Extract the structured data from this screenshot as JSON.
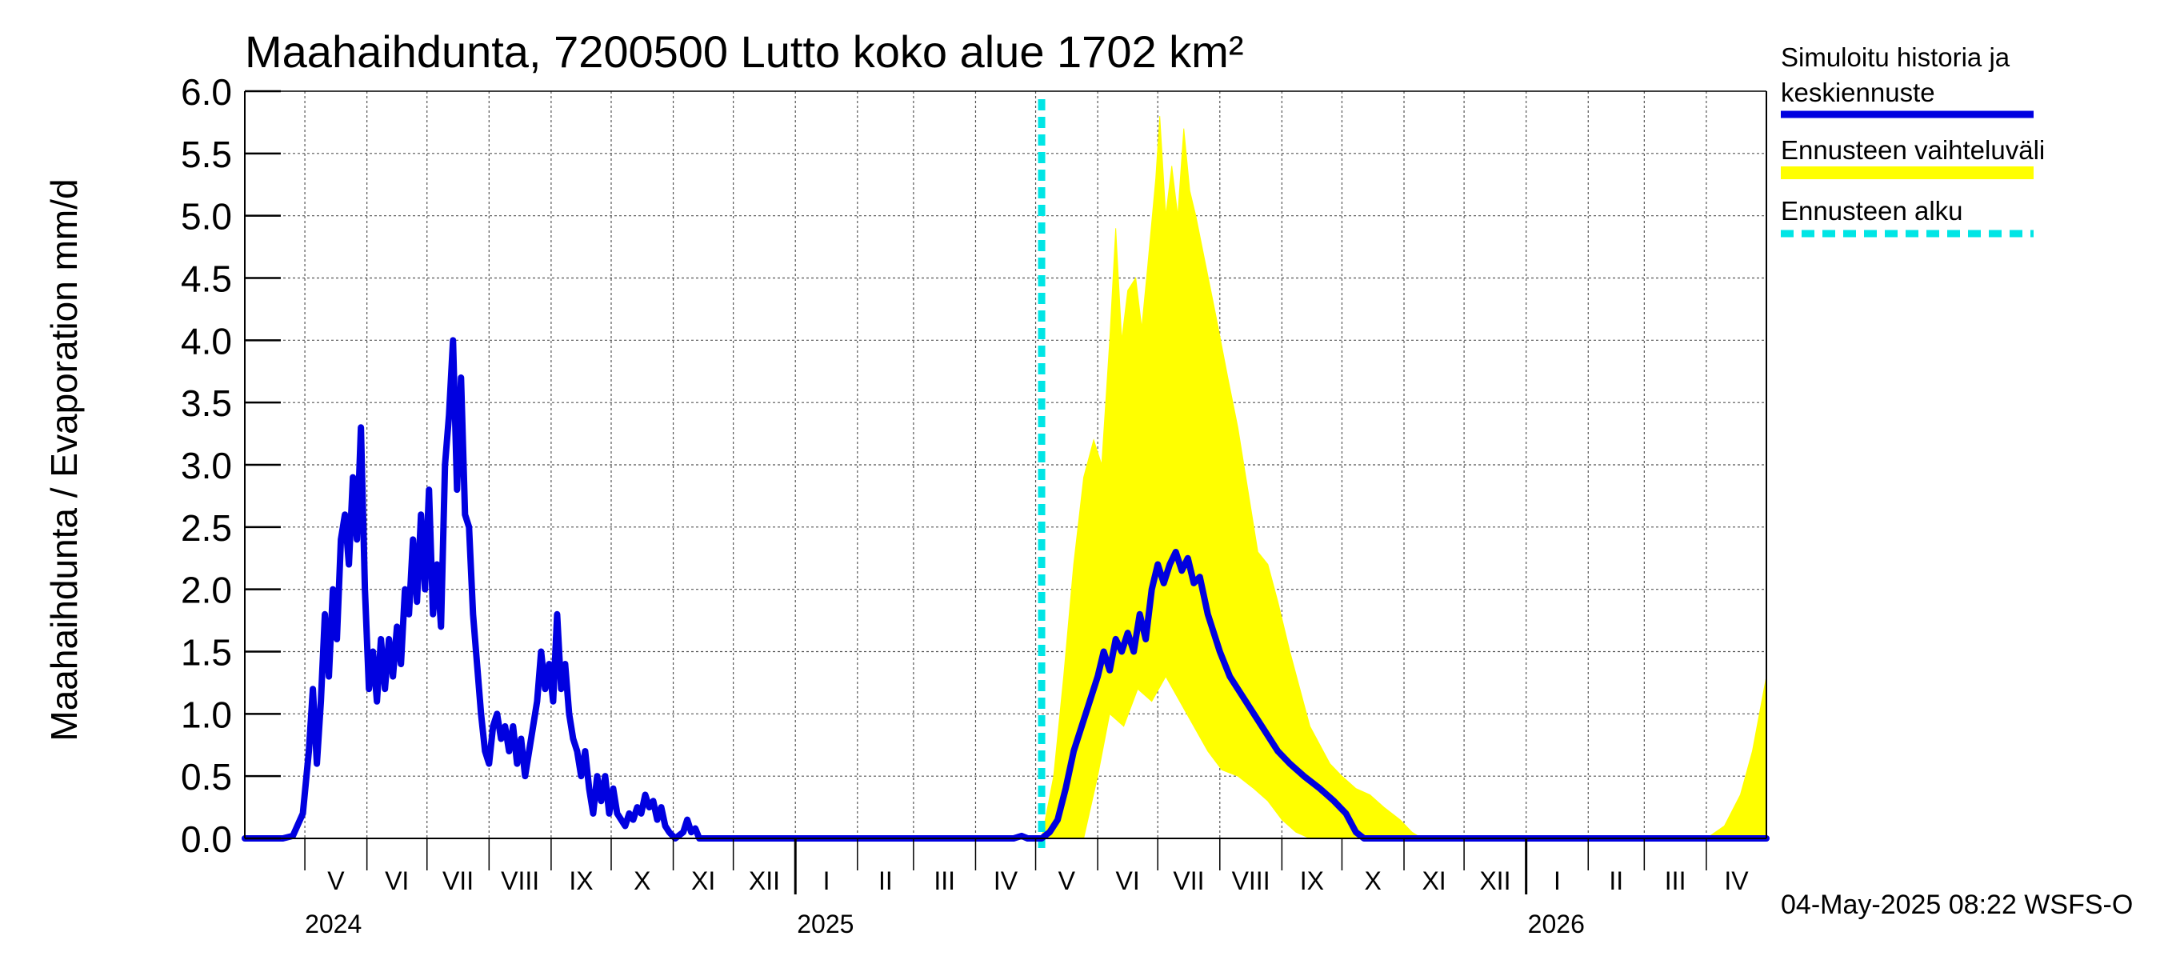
{
  "chart_data": {
    "type": "area",
    "title": "Maahaihdunta, 7200500 Lutto koko alue 1702 km²",
    "ylabel": "Maahaihdunta / Evaporation   mm/d",
    "ylim": [
      0,
      6
    ],
    "yticks": [
      "0.0",
      "0.5",
      "1.0",
      "1.5",
      "2.0",
      "2.5",
      "3.0",
      "3.5",
      "4.0",
      "4.5",
      "5.0",
      "5.5",
      "6.0"
    ],
    "x_range": [
      "2024-04-01",
      "2026-05-01"
    ],
    "x_unit": "date",
    "month_labels": [
      "V",
      "VI",
      "VII",
      "VIII",
      "IX",
      "X",
      "XI",
      "XII",
      "I",
      "II",
      "III",
      "IV",
      "V",
      "VI",
      "VII",
      "VIII",
      "IX",
      "X",
      "XI",
      "XII",
      "I",
      "II",
      "III",
      "IV"
    ],
    "year_labels": [
      "2024",
      "2025",
      "2026"
    ],
    "grid": true,
    "legend_position": "right",
    "forecast_start": "2025-05-04",
    "colors": {
      "history": "#0000e0",
      "range": "#ffff00",
      "forecast_line": "#00e5e5",
      "grid": "#555555"
    },
    "legend": [
      {
        "label_lines": [
          "Simuloitu historia ja",
          "keskiennuste"
        ],
        "style": "history"
      },
      {
        "label_lines": [
          "Ennusteen vaihteluväli"
        ],
        "style": "range"
      },
      {
        "label_lines": [
          "Ennusteen alku"
        ],
        "style": "forecast_line"
      }
    ],
    "series": [
      {
        "name": "Simuloitu historia ja keskiennuste",
        "points": [
          [
            "2024-04-01",
            0.0
          ],
          [
            "2024-04-20",
            0.0
          ],
          [
            "2024-04-25",
            0.02
          ],
          [
            "2024-04-30",
            0.2
          ],
          [
            "2024-05-03",
            0.7
          ],
          [
            "2024-05-05",
            1.2
          ],
          [
            "2024-05-07",
            0.6
          ],
          [
            "2024-05-09",
            1.1
          ],
          [
            "2024-05-11",
            1.8
          ],
          [
            "2024-05-13",
            1.3
          ],
          [
            "2024-05-15",
            2.0
          ],
          [
            "2024-05-17",
            1.6
          ],
          [
            "2024-05-19",
            2.4
          ],
          [
            "2024-05-21",
            2.6
          ],
          [
            "2024-05-23",
            2.2
          ],
          [
            "2024-05-25",
            2.9
          ],
          [
            "2024-05-27",
            2.4
          ],
          [
            "2024-05-29",
            3.3
          ],
          [
            "2024-05-31",
            2.0
          ],
          [
            "2024-06-02",
            1.2
          ],
          [
            "2024-06-04",
            1.5
          ],
          [
            "2024-06-06",
            1.1
          ],
          [
            "2024-06-08",
            1.6
          ],
          [
            "2024-06-10",
            1.2
          ],
          [
            "2024-06-12",
            1.6
          ],
          [
            "2024-06-14",
            1.3
          ],
          [
            "2024-06-16",
            1.7
          ],
          [
            "2024-06-18",
            1.4
          ],
          [
            "2024-06-20",
            2.0
          ],
          [
            "2024-06-22",
            1.8
          ],
          [
            "2024-06-24",
            2.4
          ],
          [
            "2024-06-26",
            1.9
          ],
          [
            "2024-06-28",
            2.6
          ],
          [
            "2024-06-30",
            2.0
          ],
          [
            "2024-07-02",
            2.8
          ],
          [
            "2024-07-04",
            1.8
          ],
          [
            "2024-07-06",
            2.2
          ],
          [
            "2024-07-08",
            1.7
          ],
          [
            "2024-07-10",
            3.0
          ],
          [
            "2024-07-12",
            3.4
          ],
          [
            "2024-07-14",
            4.0
          ],
          [
            "2024-07-16",
            2.8
          ],
          [
            "2024-07-18",
            3.7
          ],
          [
            "2024-07-20",
            2.6
          ],
          [
            "2024-07-22",
            2.5
          ],
          [
            "2024-07-24",
            1.8
          ],
          [
            "2024-07-26",
            1.4
          ],
          [
            "2024-07-28",
            1.0
          ],
          [
            "2024-07-30",
            0.7
          ],
          [
            "2024-08-01",
            0.6
          ],
          [
            "2024-08-03",
            0.9
          ],
          [
            "2024-08-05",
            1.0
          ],
          [
            "2024-08-07",
            0.8
          ],
          [
            "2024-08-09",
            0.9
          ],
          [
            "2024-08-11",
            0.7
          ],
          [
            "2024-08-13",
            0.9
          ],
          [
            "2024-08-15",
            0.6
          ],
          [
            "2024-08-17",
            0.8
          ],
          [
            "2024-08-19",
            0.5
          ],
          [
            "2024-08-21",
            0.7
          ],
          [
            "2024-08-23",
            0.9
          ],
          [
            "2024-08-25",
            1.1
          ],
          [
            "2024-08-27",
            1.5
          ],
          [
            "2024-08-29",
            1.2
          ],
          [
            "2024-08-31",
            1.4
          ],
          [
            "2024-09-02",
            1.1
          ],
          [
            "2024-09-04",
            1.8
          ],
          [
            "2024-09-06",
            1.2
          ],
          [
            "2024-09-08",
            1.4
          ],
          [
            "2024-09-10",
            1.0
          ],
          [
            "2024-09-12",
            0.8
          ],
          [
            "2024-09-14",
            0.7
          ],
          [
            "2024-09-16",
            0.5
          ],
          [
            "2024-09-18",
            0.7
          ],
          [
            "2024-09-20",
            0.4
          ],
          [
            "2024-09-22",
            0.2
          ],
          [
            "2024-09-24",
            0.5
          ],
          [
            "2024-09-26",
            0.3
          ],
          [
            "2024-09-28",
            0.5
          ],
          [
            "2024-09-30",
            0.2
          ],
          [
            "2024-10-02",
            0.4
          ],
          [
            "2024-10-04",
            0.2
          ],
          [
            "2024-10-06",
            0.15
          ],
          [
            "2024-10-08",
            0.1
          ],
          [
            "2024-10-10",
            0.2
          ],
          [
            "2024-10-12",
            0.15
          ],
          [
            "2024-10-14",
            0.25
          ],
          [
            "2024-10-16",
            0.2
          ],
          [
            "2024-10-18",
            0.35
          ],
          [
            "2024-10-20",
            0.25
          ],
          [
            "2024-10-22",
            0.3
          ],
          [
            "2024-10-24",
            0.15
          ],
          [
            "2024-10-26",
            0.25
          ],
          [
            "2024-10-28",
            0.1
          ],
          [
            "2024-10-30",
            0.05
          ],
          [
            "2024-11-02",
            0.0
          ],
          [
            "2024-11-06",
            0.05
          ],
          [
            "2024-11-08",
            0.15
          ],
          [
            "2024-11-10",
            0.05
          ],
          [
            "2024-11-12",
            0.08
          ],
          [
            "2024-11-14",
            0.0
          ],
          [
            "2025-04-20",
            0.0
          ],
          [
            "2025-04-24",
            0.02
          ],
          [
            "2025-04-27",
            0.0
          ],
          [
            "2025-05-04",
            0.0
          ],
          [
            "2025-05-08",
            0.05
          ],
          [
            "2025-05-12",
            0.15
          ],
          [
            "2025-05-16",
            0.4
          ],
          [
            "2025-05-20",
            0.7
          ],
          [
            "2025-05-24",
            0.9
          ],
          [
            "2025-05-28",
            1.1
          ],
          [
            "2025-06-01",
            1.3
          ],
          [
            "2025-06-04",
            1.5
          ],
          [
            "2025-06-07",
            1.35
          ],
          [
            "2025-06-10",
            1.6
          ],
          [
            "2025-06-13",
            1.5
          ],
          [
            "2025-06-16",
            1.65
          ],
          [
            "2025-06-19",
            1.5
          ],
          [
            "2025-06-22",
            1.8
          ],
          [
            "2025-06-25",
            1.6
          ],
          [
            "2025-06-28",
            2.0
          ],
          [
            "2025-07-01",
            2.2
          ],
          [
            "2025-07-04",
            2.05
          ],
          [
            "2025-07-07",
            2.2
          ],
          [
            "2025-07-10",
            2.3
          ],
          [
            "2025-07-13",
            2.15
          ],
          [
            "2025-07-16",
            2.25
          ],
          [
            "2025-07-19",
            2.05
          ],
          [
            "2025-07-22",
            2.1
          ],
          [
            "2025-07-26",
            1.8
          ],
          [
            "2025-08-01",
            1.5
          ],
          [
            "2025-08-06",
            1.3
          ],
          [
            "2025-08-12",
            1.15
          ],
          [
            "2025-08-18",
            1.0
          ],
          [
            "2025-08-24",
            0.85
          ],
          [
            "2025-08-30",
            0.7
          ],
          [
            "2025-09-05",
            0.6
          ],
          [
            "2025-09-12",
            0.5
          ],
          [
            "2025-09-20",
            0.4
          ],
          [
            "2025-09-27",
            0.3
          ],
          [
            "2025-10-03",
            0.2
          ],
          [
            "2025-10-08",
            0.05
          ],
          [
            "2025-10-12",
            0.0
          ],
          [
            "2026-05-01",
            0.0
          ]
        ]
      },
      {
        "name": "Ennusteen vaihteluväli",
        "upper": [
          [
            "2025-05-04",
            0.0
          ],
          [
            "2025-05-10",
            0.5
          ],
          [
            "2025-05-15",
            1.3
          ],
          [
            "2025-05-20",
            2.2
          ],
          [
            "2025-05-25",
            2.9
          ],
          [
            "2025-05-30",
            3.2
          ],
          [
            "2025-06-03",
            3.0
          ],
          [
            "2025-06-07",
            4.0
          ],
          [
            "2025-06-10",
            4.9
          ],
          [
            "2025-06-13",
            4.0
          ],
          [
            "2025-06-16",
            4.4
          ],
          [
            "2025-06-20",
            4.5
          ],
          [
            "2025-06-23",
            4.1
          ],
          [
            "2025-06-26",
            4.6
          ],
          [
            "2025-06-30",
            5.3
          ],
          [
            "2025-07-02",
            5.8
          ],
          [
            "2025-07-05",
            5.0
          ],
          [
            "2025-07-08",
            5.4
          ],
          [
            "2025-07-11",
            5.0
          ],
          [
            "2025-07-14",
            5.7
          ],
          [
            "2025-07-17",
            5.2
          ],
          [
            "2025-07-20",
            5.0
          ],
          [
            "2025-07-25",
            4.6
          ],
          [
            "2025-07-30",
            4.2
          ],
          [
            "2025-08-05",
            3.7
          ],
          [
            "2025-08-10",
            3.3
          ],
          [
            "2025-08-15",
            2.8
          ],
          [
            "2025-08-20",
            2.3
          ],
          [
            "2025-08-25",
            2.2
          ],
          [
            "2025-08-30",
            1.9
          ],
          [
            "2025-09-05",
            1.5
          ],
          [
            "2025-09-10",
            1.2
          ],
          [
            "2025-09-15",
            0.9
          ],
          [
            "2025-09-20",
            0.75
          ],
          [
            "2025-09-25",
            0.6
          ],
          [
            "2025-10-01",
            0.5
          ],
          [
            "2025-10-08",
            0.4
          ],
          [
            "2025-10-15",
            0.35
          ],
          [
            "2025-10-22",
            0.25
          ],
          [
            "2025-10-30",
            0.15
          ],
          [
            "2025-11-05",
            0.05
          ],
          [
            "2025-11-10",
            0.0
          ],
          [
            "2026-04-01",
            0.0
          ],
          [
            "2026-04-10",
            0.1
          ],
          [
            "2026-04-18",
            0.35
          ],
          [
            "2026-04-24",
            0.7
          ],
          [
            "2026-05-01",
            1.3
          ]
        ],
        "lower": [
          [
            "2025-05-04",
            0.0
          ],
          [
            "2025-05-25",
            0.0
          ],
          [
            "2025-06-01",
            0.5
          ],
          [
            "2025-06-07",
            1.0
          ],
          [
            "2025-06-14",
            0.9
          ],
          [
            "2025-06-21",
            1.2
          ],
          [
            "2025-06-28",
            1.1
          ],
          [
            "2025-07-05",
            1.3
          ],
          [
            "2025-07-12",
            1.1
          ],
          [
            "2025-07-19",
            0.9
          ],
          [
            "2025-07-26",
            0.7
          ],
          [
            "2025-08-02",
            0.55
          ],
          [
            "2025-08-10",
            0.5
          ],
          [
            "2025-08-18",
            0.4
          ],
          [
            "2025-08-25",
            0.3
          ],
          [
            "2025-09-01",
            0.15
          ],
          [
            "2025-09-08",
            0.05
          ],
          [
            "2025-09-15",
            0.0
          ],
          [
            "2026-05-01",
            0.0
          ]
        ]
      }
    ]
  },
  "footer_timestamp": "04-May-2025 08:22 WSFS-O"
}
